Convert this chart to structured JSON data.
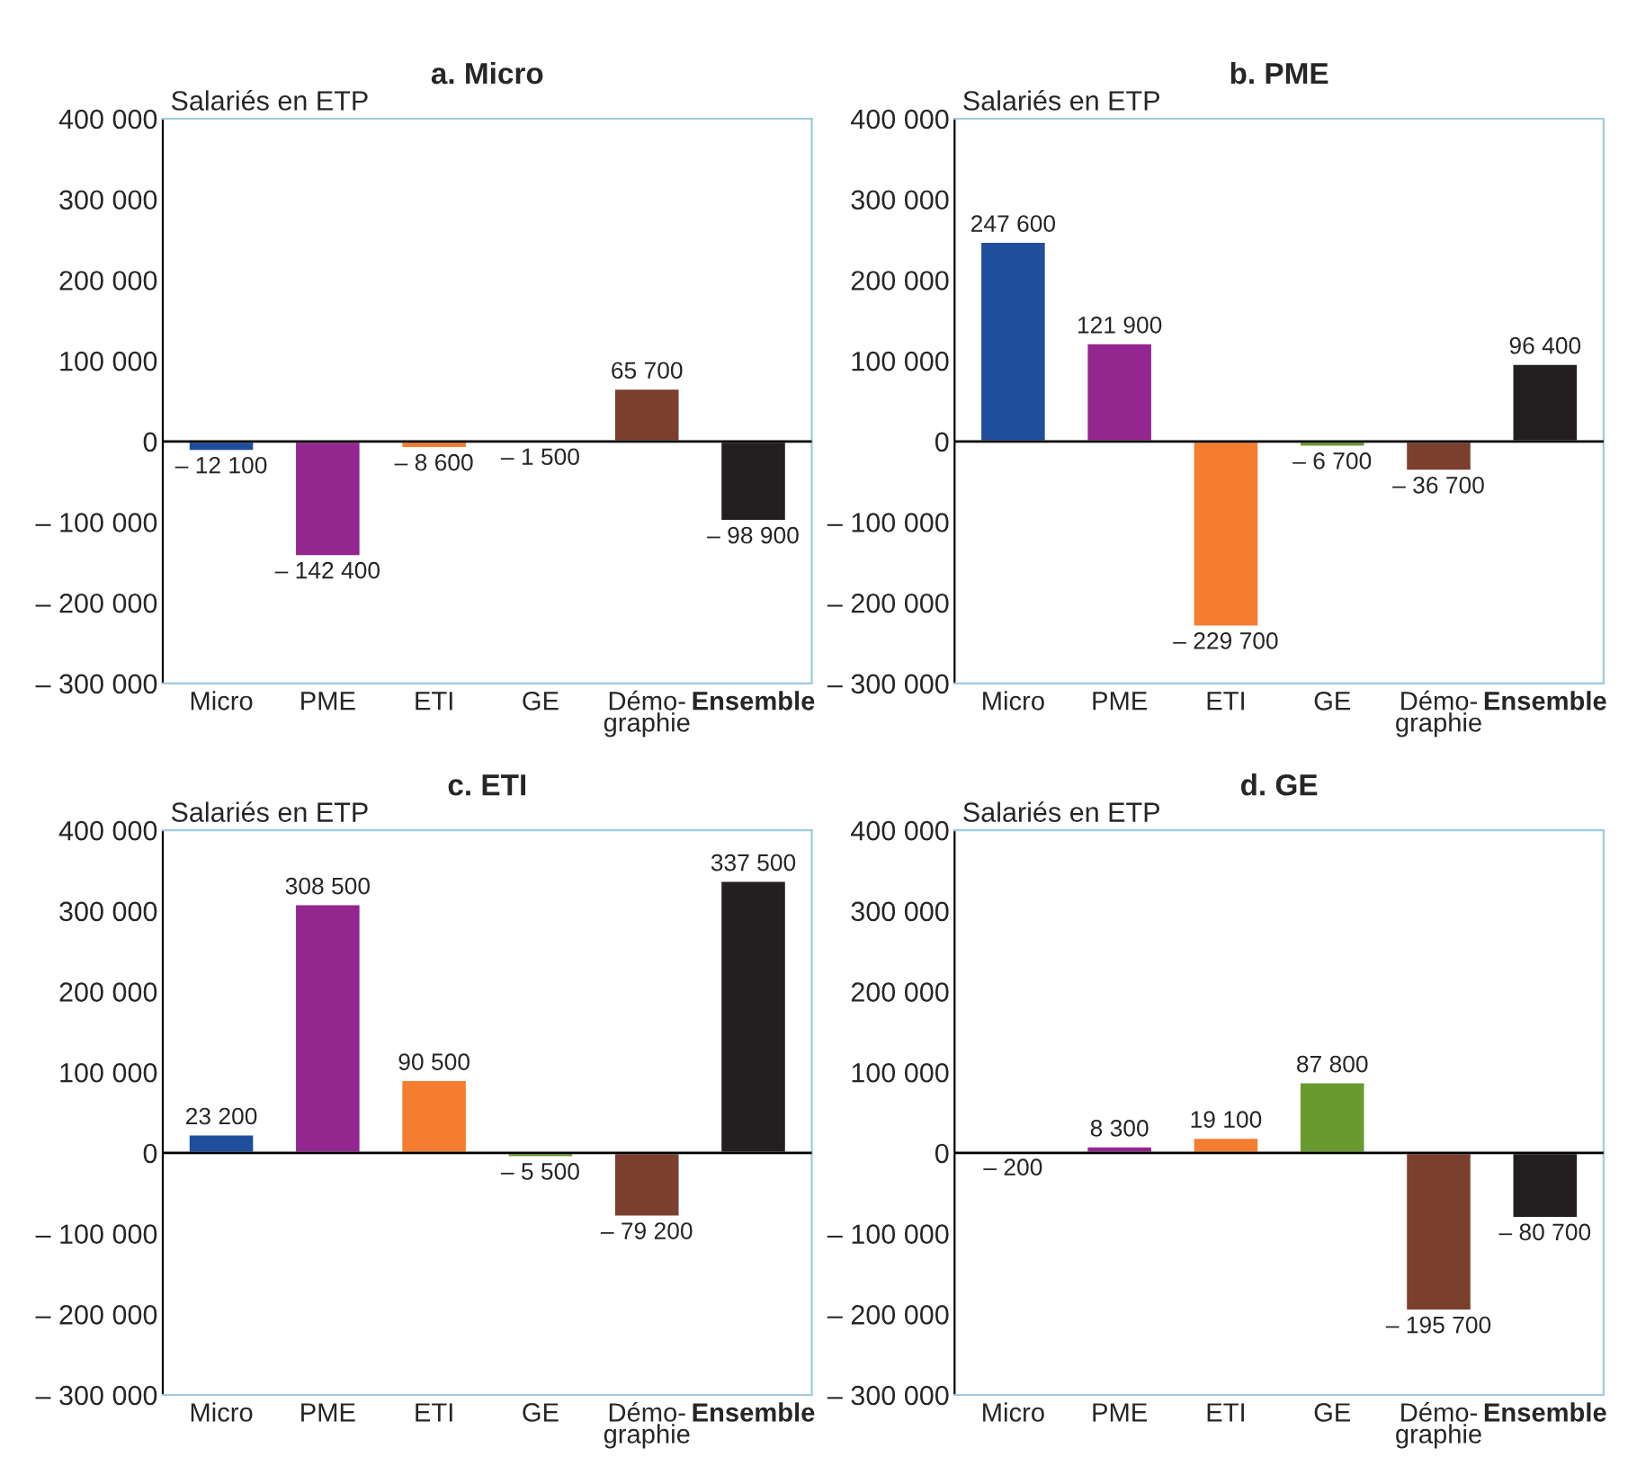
{
  "chart_data": [
    {
      "type": "bar",
      "title": "a. Micro",
      "ylabel": "Salariés en ETP",
      "categories": [
        "Micro",
        "PME",
        "ETI",
        "GE",
        "Démo-\ngraphie",
        "Ensemble"
      ],
      "values": [
        -12100,
        -142400,
        -8600,
        -1500,
        65700,
        -98900
      ],
      "value_labels": [
        "– 12 100",
        "– 142 400",
        "– 8 600",
        "– 1 500",
        "65 700",
        "– 98 900"
      ],
      "colors": [
        "#1f4e9c",
        "#93278f",
        "#f47d30",
        "#6a9a2e",
        "#7b3f2e",
        "#231f20"
      ],
      "ylim": [
        -300000,
        400000
      ],
      "yticks": [
        {
          "value": -300000,
          "label": "– 300 000"
        },
        {
          "value": -200000,
          "label": "– 200 000"
        },
        {
          "value": -100000,
          "label": "– 100 000"
        },
        0,
        {
          "value": 100000,
          "label": "100 000"
        },
        {
          "value": 200000,
          "label": "200 000"
        },
        {
          "value": 300000,
          "label": "300 000"
        },
        {
          "value": 400000,
          "label": "400 000"
        }
      ],
      "ref_lines": [
        {
          "axis": "y",
          "value": 0,
          "color": "#000000"
        }
      ],
      "grid": false,
      "legend": false
    },
    {
      "type": "bar",
      "title": "b. PME",
      "ylabel": "Salariés en ETP",
      "categories": [
        "Micro",
        "PME",
        "ETI",
        "GE",
        "Démo-\ngraphie",
        "Ensemble"
      ],
      "values": [
        247600,
        121900,
        -229700,
        -6700,
        -36700,
        96400
      ],
      "value_labels": [
        "247 600",
        "121 900",
        "– 229 700",
        "– 6 700",
        "– 36 700",
        "96 400"
      ],
      "colors": [
        "#1f4e9c",
        "#93278f",
        "#f47d30",
        "#6a9a2e",
        "#7b3f2e",
        "#231f20"
      ],
      "ylim": [
        -300000,
        400000
      ],
      "yticks": [
        {
          "value": -300000,
          "label": "– 300 000"
        },
        {
          "value": -200000,
          "label": "– 200 000"
        },
        {
          "value": -100000,
          "label": "– 100 000"
        },
        0,
        {
          "value": 100000,
          "label": "100 000"
        },
        {
          "value": 200000,
          "label": "200 000"
        },
        {
          "value": 300000,
          "label": "300 000"
        },
        {
          "value": 400000,
          "label": "400 000"
        }
      ],
      "ref_lines": [
        {
          "axis": "y",
          "value": 0,
          "color": "#000000"
        }
      ],
      "grid": false,
      "legend": false
    },
    {
      "type": "bar",
      "title": "c. ETI",
      "ylabel": "Salariés en ETP",
      "categories": [
        "Micro",
        "PME",
        "ETI",
        "GE",
        "Démo-\ngraphie",
        "Ensemble"
      ],
      "values": [
        23200,
        308500,
        90500,
        -5500,
        -79200,
        337500
      ],
      "value_labels": [
        "23 200",
        "308 500",
        "90 500",
        "– 5 500",
        "– 79 200",
        "337 500"
      ],
      "colors": [
        "#1f4e9c",
        "#93278f",
        "#f47d30",
        "#6a9a2e",
        "#7b3f2e",
        "#231f20"
      ],
      "ylim": [
        -300000,
        400000
      ],
      "yticks": [
        {
          "value": -300000,
          "label": "– 300 000"
        },
        {
          "value": -200000,
          "label": "– 200 000"
        },
        {
          "value": -100000,
          "label": "– 100 000"
        },
        0,
        {
          "value": 100000,
          "label": "100 000"
        },
        {
          "value": 200000,
          "label": "200 000"
        },
        {
          "value": 300000,
          "label": "300 000"
        },
        {
          "value": 400000,
          "label": "400 000"
        }
      ],
      "ref_lines": [
        {
          "axis": "y",
          "value": 0,
          "color": "#000000"
        }
      ],
      "grid": false,
      "legend": false
    },
    {
      "type": "bar",
      "title": "d. GE",
      "ylabel": "Salariés en ETP",
      "categories": [
        "Micro",
        "PME",
        "ETI",
        "GE",
        "Démo-\ngraphie",
        "Ensemble"
      ],
      "values": [
        -200,
        8300,
        19100,
        87800,
        -195700,
        -80700
      ],
      "value_labels": [
        "– 200",
        "8 300",
        "19 100",
        "87 800",
        "– 195 700",
        "– 80 700"
      ],
      "colors": [
        "#1f4e9c",
        "#93278f",
        "#f47d30",
        "#6a9a2e",
        "#7b3f2e",
        "#231f20"
      ],
      "ylim": [
        -300000,
        400000
      ],
      "yticks": [
        {
          "value": -300000,
          "label": "– 300 000"
        },
        {
          "value": -200000,
          "label": "– 200 000"
        },
        {
          "value": -100000,
          "label": "– 100 000"
        },
        0,
        {
          "value": 100000,
          "label": "100 000"
        },
        {
          "value": 200000,
          "label": "200 000"
        },
        {
          "value": 300000,
          "label": "300 000"
        },
        {
          "value": 400000,
          "label": "400 000"
        }
      ],
      "ref_lines": [
        {
          "axis": "y",
          "value": 0,
          "color": "#000000"
        }
      ],
      "grid": false,
      "legend": false
    }
  ]
}
